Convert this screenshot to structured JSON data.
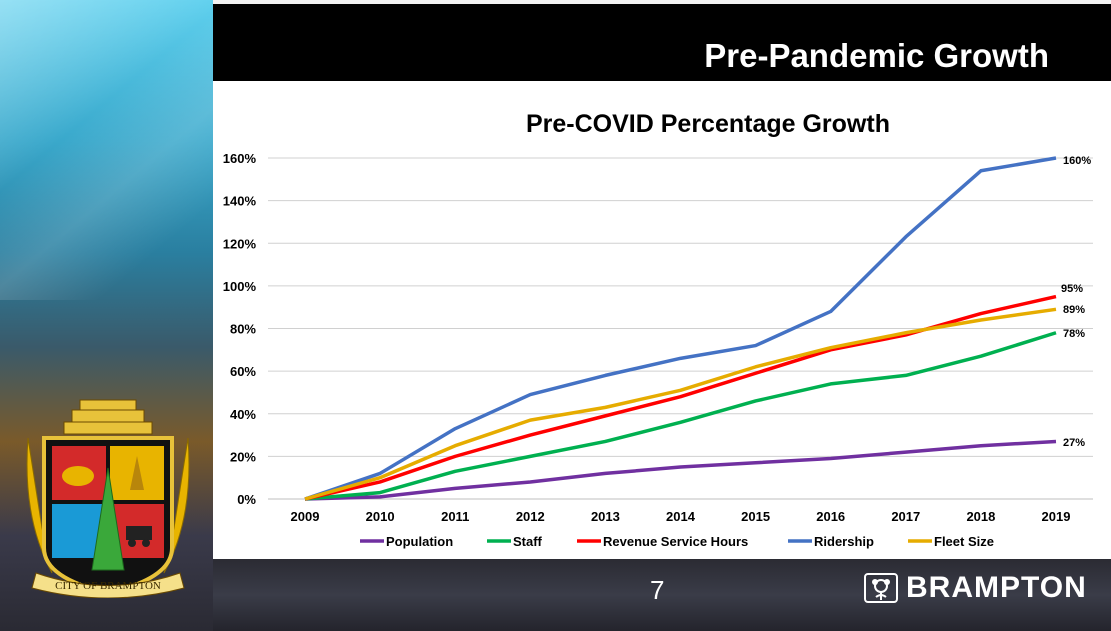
{
  "header": {
    "title": "Pre-Pandemic Growth"
  },
  "footer": {
    "page_number": "7",
    "brand": "BRAMPTON"
  },
  "crest": {
    "text": "CITY OF BRAMPTON"
  },
  "colors": {
    "population": "#7030a0",
    "staff": "#00b050",
    "revenue": "#ff0000",
    "ridership": "#4472c4",
    "fleet": "#e6ac00"
  },
  "chart_data": {
    "type": "line",
    "title": "Pre-COVID Percentage Growth",
    "x": [
      "2009",
      "2010",
      "2011",
      "2012",
      "2013",
      "2014",
      "2015",
      "2016",
      "2017",
      "2018",
      "2019"
    ],
    "ylim": [
      0,
      160
    ],
    "yticks": [
      "0%",
      "20%",
      "40%",
      "60%",
      "80%",
      "100%",
      "120%",
      "140%",
      "160%"
    ],
    "ytick_values": [
      0,
      20,
      40,
      60,
      80,
      100,
      120,
      140,
      160
    ],
    "grid": true,
    "legend_position": "bottom",
    "series": [
      {
        "name": "Population",
        "color": "#7030a0",
        "values": [
          0,
          1,
          5,
          8,
          12,
          15,
          17,
          19,
          22,
          25,
          27
        ],
        "end_label": "27%"
      },
      {
        "name": "Staff",
        "color": "#00b050",
        "values": [
          0,
          3,
          13,
          20,
          27,
          36,
          46,
          54,
          58,
          67,
          78
        ],
        "end_label": "78%"
      },
      {
        "name": "Revenue Service Hours",
        "color": "#ff0000",
        "values": [
          0,
          8,
          20,
          30,
          39,
          48,
          59,
          70,
          77,
          87,
          95
        ],
        "end_label": "95%"
      },
      {
        "name": "Ridership",
        "color": "#4472c4",
        "values": [
          0,
          12,
          33,
          49,
          58,
          66,
          72,
          88,
          123,
          154,
          160
        ],
        "end_label": "160%"
      },
      {
        "name": "Fleet Size",
        "color": "#e6ac00",
        "values": [
          0,
          10,
          25,
          37,
          43,
          51,
          62,
          71,
          78,
          84,
          89
        ],
        "end_label": "89%"
      }
    ]
  }
}
